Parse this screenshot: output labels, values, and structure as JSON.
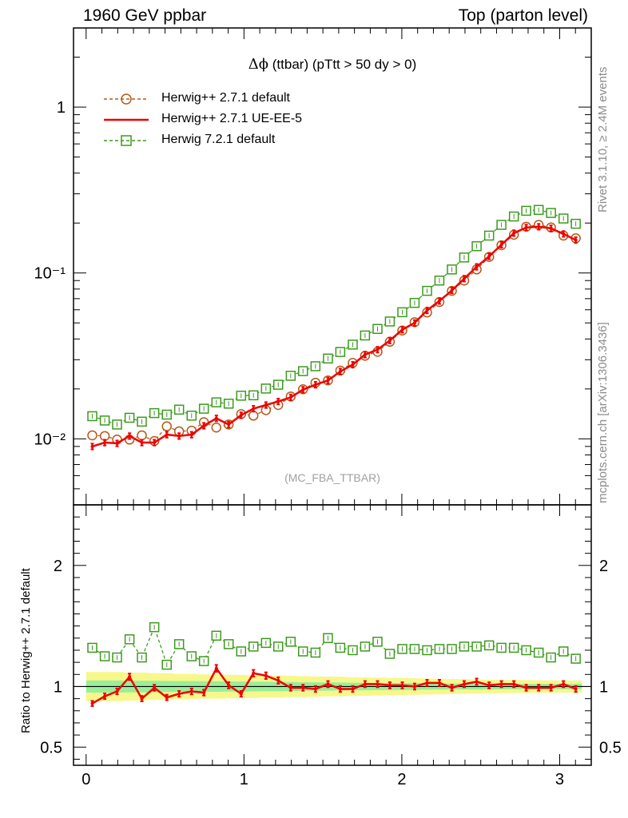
{
  "header": {
    "left": "1960 GeV ppbar",
    "right": "Top (parton level)"
  },
  "side_labels": {
    "rivet": "Rivet 3.1.10, ≥ 2.4M events",
    "mcplots": "mcplots.cern.ch [arXiv:1306.3436]"
  },
  "chart_data": [
    {
      "type": "line",
      "title_symbol": "Δϕ",
      "title_text": "(ttbar) (pTtt > 50 dy > 0)",
      "watermark": "(MC_FBA_TTBAR)",
      "xlim": [
        -0.08,
        3.2
      ],
      "ylim": [
        0.004,
        3.0
      ],
      "yscale": "log",
      "ytick_labels": [
        "10⁻²",
        "10⁻¹",
        "1"
      ],
      "legend_position": "top-left",
      "x": [
        0.039,
        0.118,
        0.196,
        0.275,
        0.353,
        0.432,
        0.511,
        0.589,
        0.668,
        0.746,
        0.825,
        0.903,
        0.982,
        1.06,
        1.139,
        1.217,
        1.296,
        1.374,
        1.453,
        1.532,
        1.61,
        1.689,
        1.767,
        1.846,
        1.924,
        2.003,
        2.081,
        2.16,
        2.238,
        2.317,
        2.395,
        2.474,
        2.553,
        2.631,
        2.71,
        2.788,
        2.867,
        2.945,
        3.024,
        3.102
      ],
      "series": [
        {
          "name": "Herwig++ 2.7.1 default",
          "color": "#b35a1a",
          "marker": "circle",
          "linestyle": "dashed",
          "values": [
            0.0105,
            0.0104,
            0.0099,
            0.0099,
            0.0105,
            0.0097,
            0.0119,
            0.0111,
            0.0112,
            0.0126,
            0.0117,
            0.0122,
            0.0141,
            0.0138,
            0.0149,
            0.016,
            0.018,
            0.0199,
            0.0218,
            0.0225,
            0.0258,
            0.0287,
            0.0317,
            0.0335,
            0.0385,
            0.045,
            0.0505,
            0.0578,
            0.0668,
            0.078,
            0.09,
            0.105,
            0.125,
            0.147,
            0.17,
            0.19,
            0.195,
            0.188,
            0.168,
            0.162
          ]
        },
        {
          "name": "Herwig++ 2.7.1 UE-EE-5",
          "color": "#ee0000",
          "marker": "errorbar",
          "linestyle": "solid",
          "values": [
            0.009,
            0.0095,
            0.0094,
            0.0104,
            0.0095,
            0.0095,
            0.0106,
            0.0104,
            0.0106,
            0.012,
            0.0133,
            0.0122,
            0.0139,
            0.0152,
            0.016,
            0.0168,
            0.0178,
            0.0198,
            0.0212,
            0.0225,
            0.0255,
            0.028,
            0.0322,
            0.0345,
            0.0392,
            0.0455,
            0.05,
            0.0595,
            0.0678,
            0.0785,
            0.0925,
            0.109,
            0.126,
            0.148,
            0.174,
            0.188,
            0.19,
            0.186,
            0.172,
            0.158
          ]
        },
        {
          "name": "Herwig 7.2.1 default",
          "color": "#3c9a1e",
          "marker": "square",
          "linestyle": "dashed",
          "values": [
            0.0137,
            0.0129,
            0.0122,
            0.0134,
            0.0127,
            0.0143,
            0.014,
            0.015,
            0.0138,
            0.0152,
            0.0166,
            0.0163,
            0.0182,
            0.0183,
            0.0201,
            0.0212,
            0.024,
            0.0256,
            0.0274,
            0.0305,
            0.0334,
            0.037,
            0.042,
            0.046,
            0.051,
            0.058,
            0.066,
            0.078,
            0.09,
            0.105,
            0.124,
            0.145,
            0.168,
            0.195,
            0.219,
            0.237,
            0.24,
            0.23,
            0.213,
            0.198
          ]
        }
      ]
    },
    {
      "type": "line",
      "ylabel": "Ratio to Herwig++ 2.7.1 default",
      "xlim": [
        -0.08,
        3.2
      ],
      "ylim": [
        0.35,
        2.5
      ],
      "ytick_labels": [
        "0.5",
        "1",
        "2"
      ],
      "xtick_labels": [
        "0",
        "1",
        "2",
        "3"
      ],
      "reference_line": 1,
      "uncertainty_band": {
        "inner_color": "#99ee99",
        "outer_color": "#f7f78c",
        "inner_halfwidth": [
          0.05,
          0.05,
          0.05,
          0.048,
          0.048,
          0.047,
          0.046,
          0.045,
          0.045,
          0.044,
          0.043,
          0.042,
          0.041,
          0.04,
          0.039,
          0.038,
          0.037,
          0.036,
          0.035,
          0.034,
          0.033,
          0.032,
          0.031,
          0.03,
          0.029,
          0.028,
          0.027,
          0.026,
          0.025,
          0.025,
          0.024,
          0.024,
          0.023,
          0.023,
          0.022,
          0.022,
          0.022,
          0.022,
          0.022,
          0.022
        ],
        "outer_halfwidth": [
          0.12,
          0.12,
          0.12,
          0.115,
          0.115,
          0.11,
          0.11,
          0.105,
          0.105,
          0.1,
          0.1,
          0.098,
          0.096,
          0.094,
          0.092,
          0.09,
          0.088,
          0.086,
          0.084,
          0.082,
          0.08,
          0.078,
          0.076,
          0.074,
          0.072,
          0.07,
          0.068,
          0.066,
          0.064,
          0.062,
          0.06,
          0.058,
          0.056,
          0.055,
          0.054,
          0.053,
          0.052,
          0.051,
          0.05,
          0.05
        ]
      },
      "series": [
        {
          "name": "Herwig++ 2.7.1 UE-EE-5",
          "color": "#ee0000",
          "marker": "errorbar",
          "linestyle": "solid",
          "values": [
            0.86,
            0.92,
            0.96,
            1.08,
            0.9,
            0.99,
            0.91,
            0.94,
            0.96,
            0.95,
            1.15,
            1.01,
            0.94,
            1.11,
            1.09,
            1.05,
            0.99,
            0.99,
            0.98,
            1.02,
            0.98,
            0.98,
            1.02,
            1.02,
            1.01,
            1.01,
            1.0,
            1.03,
            1.03,
            0.99,
            1.02,
            1.04,
            1.01,
            1.02,
            1.02,
            0.99,
            0.99,
            0.99,
            1.02,
            0.98
          ]
        },
        {
          "name": "Herwig 7.2.1 default",
          "color": "#3c9a1e",
          "marker": "square",
          "linestyle": "dashed",
          "values": [
            1.32,
            1.25,
            1.24,
            1.39,
            1.24,
            1.49,
            1.18,
            1.35,
            1.25,
            1.21,
            1.42,
            1.35,
            1.29,
            1.33,
            1.36,
            1.33,
            1.37,
            1.29,
            1.28,
            1.4,
            1.32,
            1.3,
            1.33,
            1.37,
            1.27,
            1.31,
            1.31,
            1.3,
            1.31,
            1.31,
            1.33,
            1.33,
            1.34,
            1.32,
            1.32,
            1.3,
            1.28,
            1.24,
            1.29,
            1.23
          ]
        }
      ]
    }
  ]
}
